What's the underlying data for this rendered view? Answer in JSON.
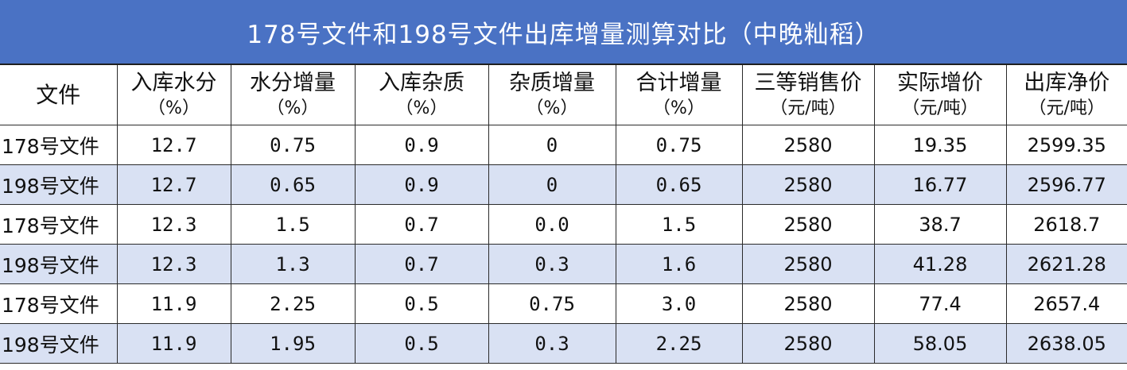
{
  "title": "178号文件和198号文件出库增量测算对比（中晚籼稻）",
  "headers": [
    {
      "label": "文件",
      "unit": ""
    },
    {
      "label": "入库水分",
      "unit": "（%）"
    },
    {
      "label": "水分增量",
      "unit": "（%）"
    },
    {
      "label": "入库杂质",
      "unit": "（%）"
    },
    {
      "label": "杂质增量",
      "unit": "（%）"
    },
    {
      "label": "合计增量",
      "unit": "（%）"
    },
    {
      "label": "三等销售价",
      "unit": "（元/吨）"
    },
    {
      "label": "实际增价",
      "unit": "（元/吨）"
    },
    {
      "label": "出库净价",
      "unit": "（元/吨）"
    }
  ],
  "rows": [
    [
      "178号文件",
      "12.7",
      "0.75",
      "0.9",
      "0",
      "0.75",
      "2580",
      "19.35",
      "2599.35"
    ],
    [
      "198号文件",
      "12.7",
      "0.65",
      "0.9",
      "0",
      "0.65",
      "2580",
      "16.77",
      "2596.77"
    ],
    [
      "178号文件",
      "12.3",
      "1.5",
      "0.7",
      "0.0",
      "1.5",
      "2580",
      "38.7",
      "2618.7"
    ],
    [
      "198号文件",
      "12.3",
      "1.3",
      "0.7",
      "0.3",
      "1.6",
      "2580",
      "41.28",
      "2621.28"
    ],
    [
      "178号文件",
      "11.9",
      "2.25",
      "0.5",
      "0.75",
      "3.0",
      "2580",
      "77.4",
      "2657.4"
    ],
    [
      "198号文件",
      "11.9",
      "1.95",
      "0.5",
      "0.3",
      "2.25",
      "2580",
      "58.05",
      "2638.05"
    ]
  ]
}
